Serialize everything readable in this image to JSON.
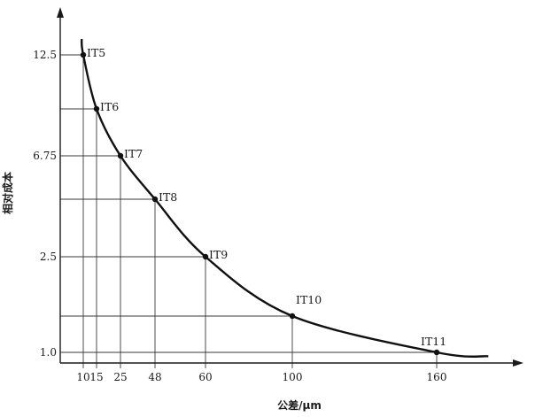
{
  "chart_data": {
    "type": "line",
    "xlabel": "公差/μm",
    "ylabel": "相对成本",
    "x_ticks": [
      "10",
      "15",
      "25",
      "48",
      "60",
      "100",
      "160"
    ],
    "y_ticks": [
      "12.5",
      "6.75",
      "2.5",
      "1.0"
    ],
    "points": [
      {
        "label": "IT5",
        "x": 10,
        "y": 12.5
      },
      {
        "label": "IT6",
        "x": 15,
        "y": 9.5
      },
      {
        "label": "IT7",
        "x": 25,
        "y": 6.75
      },
      {
        "label": "IT8",
        "x": 48,
        "y": 4.5
      },
      {
        "label": "IT9",
        "x": 60,
        "y": 2.5
      },
      {
        "label": "IT10",
        "x": 100,
        "y": 1.5
      },
      {
        "label": "IT11",
        "x": 160,
        "y": 1.0
      }
    ],
    "grid": "guide lines to both axes at each point",
    "colors": {
      "line": "#111111",
      "background": "#ffffff"
    }
  }
}
